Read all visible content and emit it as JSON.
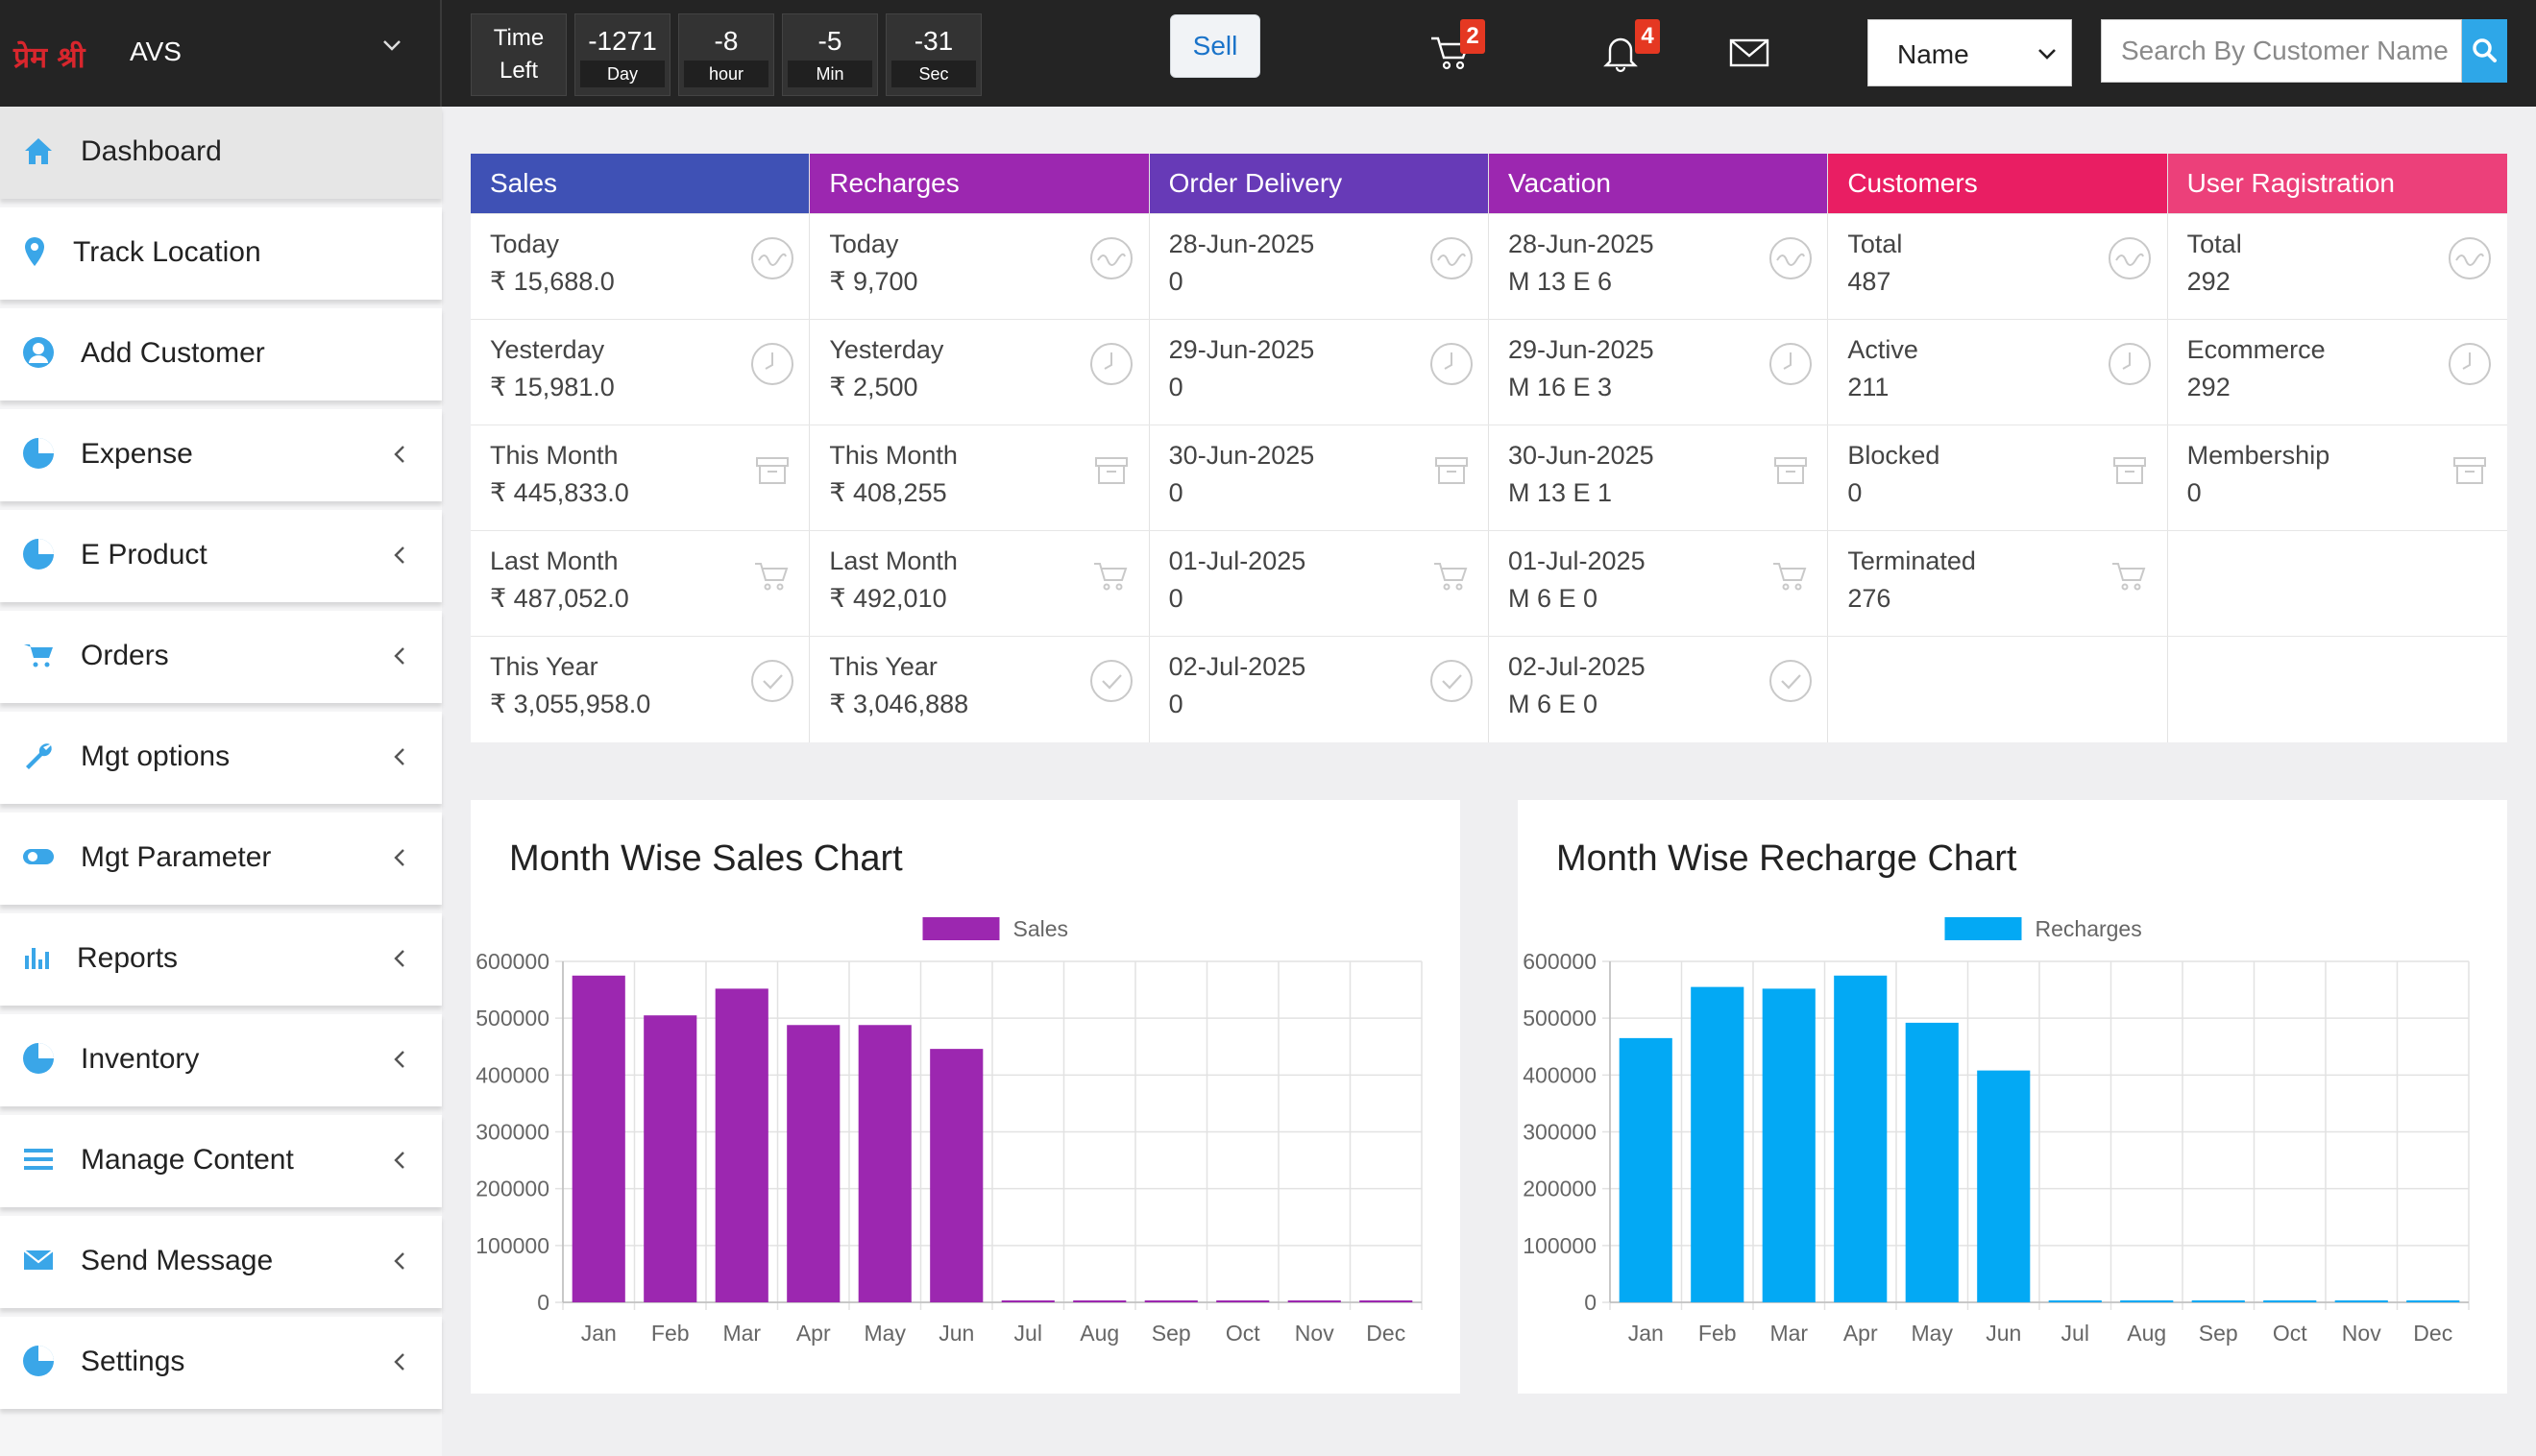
{
  "header": {
    "brand_logo": "प्रेम श्री",
    "brand_name": "AVS",
    "timer": {
      "label": "Time Left",
      "boxes": [
        {
          "value": "-1271",
          "unit": "Day"
        },
        {
          "value": "-8",
          "unit": "hour"
        },
        {
          "value": "-5",
          "unit": "Min"
        },
        {
          "value": "-31",
          "unit": "Sec"
        }
      ]
    },
    "sell_label": "Sell",
    "cart_badge": "2",
    "notification_badge": "4",
    "select_value": "Name",
    "search_placeholder": "Search By Customer Name"
  },
  "sidebar": {
    "items": [
      {
        "label": "Dashboard",
        "icon": "home-icon",
        "chevron": false
      },
      {
        "label": "Track Location",
        "icon": "map-pin-icon",
        "chevron": false
      },
      {
        "label": "Add Customer",
        "icon": "user-icon",
        "chevron": false
      },
      {
        "label": "Expense",
        "icon": "pie-chart-icon",
        "chevron": true
      },
      {
        "label": "E Product",
        "icon": "pie-chart-icon",
        "chevron": true
      },
      {
        "label": "Orders",
        "icon": "cart-icon",
        "chevron": true
      },
      {
        "label": "Mgt options",
        "icon": "wrench-icon",
        "chevron": true
      },
      {
        "label": "Mgt Parameter",
        "icon": "toggle-icon",
        "chevron": true
      },
      {
        "label": "Reports",
        "icon": "bar-chart-icon",
        "chevron": true
      },
      {
        "label": "Inventory",
        "icon": "pie-chart-icon",
        "chevron": true
      },
      {
        "label": "Manage Content",
        "icon": "menu-icon",
        "chevron": true
      },
      {
        "label": "Send Message",
        "icon": "mail-icon",
        "chevron": true
      },
      {
        "label": "Settings",
        "icon": "pie-chart-icon",
        "chevron": true
      }
    ]
  },
  "stats": {
    "columns": [
      {
        "title": "Sales",
        "color": "#3f51b5",
        "rows": [
          {
            "label": "Today",
            "value": "₹ 15,688.0"
          },
          {
            "label": "Yesterday",
            "value": "₹ 15,981.0"
          },
          {
            "label": "This Month",
            "value": "₹ 445,833.0"
          },
          {
            "label": "Last Month",
            "value": "₹ 487,052.0"
          },
          {
            "label": "This Year",
            "value": "₹ 3,055,958.0"
          }
        ]
      },
      {
        "title": "Recharges",
        "color": "#9c27b0",
        "rows": [
          {
            "label": "Today",
            "value": "₹ 9,700"
          },
          {
            "label": "Yesterday",
            "value": "₹ 2,500"
          },
          {
            "label": "This Month",
            "value": "₹ 408,255"
          },
          {
            "label": "Last Month",
            "value": "₹ 492,010"
          },
          {
            "label": "This Year",
            "value": "₹ 3,046,888"
          }
        ]
      },
      {
        "title": "Order Delivery",
        "color": "#673ab7",
        "rows": [
          {
            "label": "28-Jun-2025",
            "value": "0"
          },
          {
            "label": "29-Jun-2025",
            "value": "0"
          },
          {
            "label": "30-Jun-2025",
            "value": "0"
          },
          {
            "label": "01-Jul-2025",
            "value": "0"
          },
          {
            "label": "02-Jul-2025",
            "value": "0"
          }
        ]
      },
      {
        "title": "Vacation",
        "color": "#9c27b0",
        "rows": [
          {
            "label": "28-Jun-2025",
            "value": "M 13 E 6"
          },
          {
            "label": "29-Jun-2025",
            "value": "M 16 E 3"
          },
          {
            "label": "30-Jun-2025",
            "value": "M 13 E 1"
          },
          {
            "label": "01-Jul-2025",
            "value": "M 6 E 0"
          },
          {
            "label": "02-Jul-2025",
            "value": "M 6 E 0"
          }
        ]
      },
      {
        "title": "Customers",
        "color": "#e91e63",
        "rows": [
          {
            "label": "Total",
            "value": "487"
          },
          {
            "label": "Active",
            "value": "211"
          },
          {
            "label": "Blocked",
            "value": "0"
          },
          {
            "label": "Terminated",
            "value": "276"
          }
        ]
      },
      {
        "title": "User Ragistration",
        "color": "#ec407a",
        "rows": [
          {
            "label": "Total",
            "value": "292"
          },
          {
            "label": "Ecommerce",
            "value": "292"
          },
          {
            "label": "Membership",
            "value": "0"
          }
        ]
      }
    ],
    "row_icons": [
      "activity-icon",
      "clock-icon",
      "archive-icon",
      "cart-icon",
      "check-circle-icon"
    ]
  },
  "chart_data": [
    {
      "type": "bar",
      "title": "Month Wise Sales Chart",
      "categories": [
        "Jan",
        "Feb",
        "Mar",
        "Apr",
        "May",
        "Jun",
        "Jul",
        "Aug",
        "Sep",
        "Oct",
        "Nov",
        "Dec"
      ],
      "series": [
        {
          "name": "Sales",
          "color": "#9c27b0",
          "values": [
            575000,
            505000,
            552000,
            488000,
            488000,
            446000,
            0,
            0,
            0,
            0,
            0,
            0
          ]
        }
      ],
      "ylim": [
        0,
        600000
      ],
      "yticks": [
        0,
        100000,
        200000,
        300000,
        400000,
        500000,
        600000
      ],
      "legend": "top-center",
      "grid": true
    },
    {
      "type": "bar",
      "title": "Month Wise Recharge Chart",
      "categories": [
        "Jan",
        "Feb",
        "Mar",
        "Apr",
        "May",
        "Jun",
        "Jul",
        "Aug",
        "Sep",
        "Oct",
        "Nov",
        "Dec"
      ],
      "series": [
        {
          "name": "Recharges",
          "color": "#03a9f4",
          "values": [
            465000,
            555000,
            552000,
            575000,
            492000,
            408000,
            0,
            0,
            0,
            0,
            0,
            0
          ]
        }
      ],
      "ylim": [
        0,
        600000
      ],
      "yticks": [
        0,
        100000,
        200000,
        300000,
        400000,
        500000,
        600000
      ],
      "legend": "top-center",
      "grid": true
    }
  ]
}
